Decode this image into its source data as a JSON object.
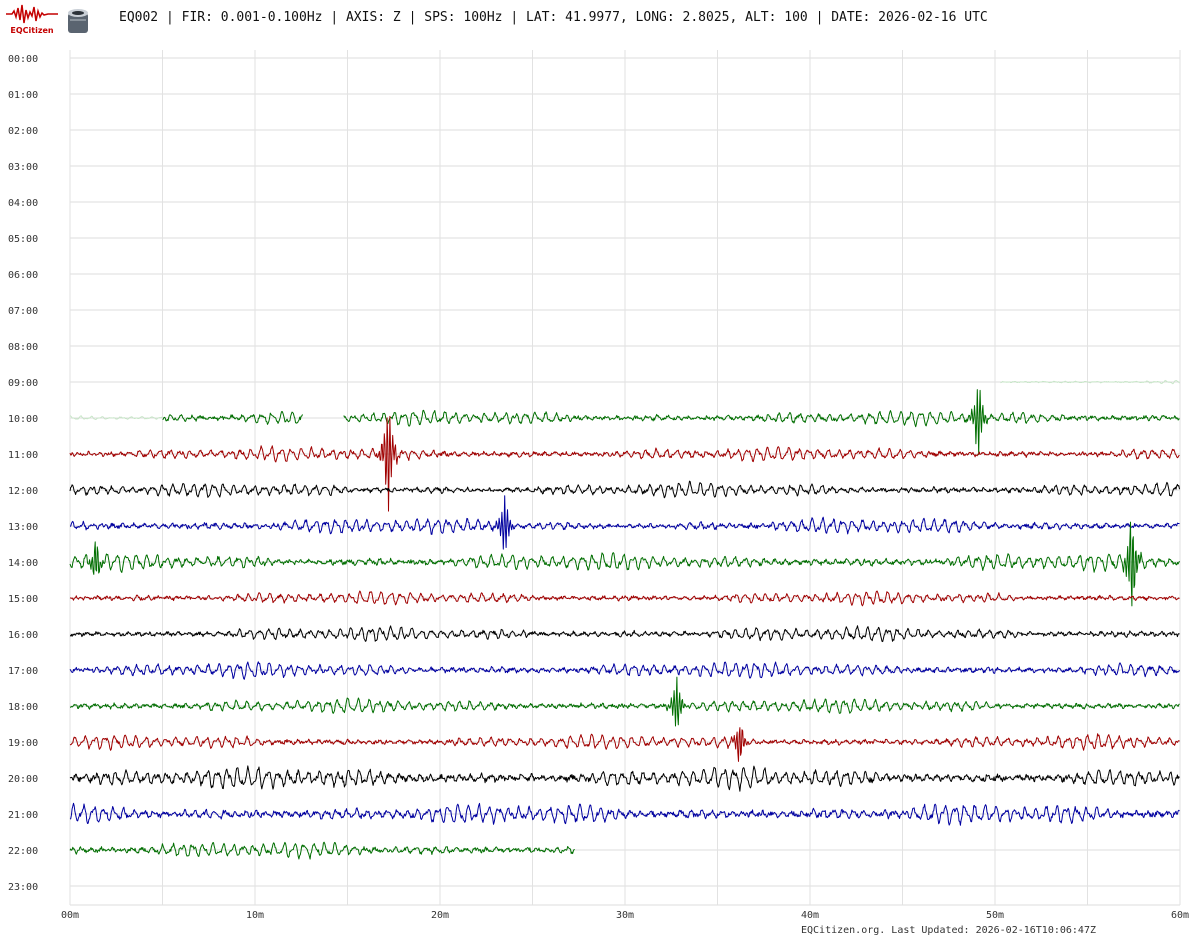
{
  "logo": {
    "text": "EQCitizen",
    "icon": "seismograph-wave-icon"
  },
  "sensor_icon": "sensor-device-icon",
  "header": {
    "title": "EQ002 | FIR: 0.001-0.100Hz | AXIS: Z | SPS: 100Hz | LAT: 41.9977, LONG: 2.8025, ALT: 100 | DATE: 2026-02-16 UTC"
  },
  "footer": {
    "text": "EQCitizen.org. Last Updated: 2026-02-16T10:06:47Z"
  },
  "chart_data": {
    "type": "line",
    "title": "",
    "xlabel": "",
    "ylabel": "",
    "x_ticks": [
      "00m",
      "10m",
      "20m",
      "30m",
      "40m",
      "50m",
      "60m"
    ],
    "x_range_minutes": [
      0,
      60
    ],
    "y_ticks": [
      "00:00",
      "01:00",
      "02:00",
      "03:00",
      "04:00",
      "05:00",
      "06:00",
      "07:00",
      "08:00",
      "09:00",
      "10:00",
      "11:00",
      "12:00",
      "13:00",
      "14:00",
      "15:00",
      "16:00",
      "17:00",
      "18:00",
      "19:00",
      "20:00",
      "21:00",
      "22:00",
      "23:00"
    ],
    "grid": true,
    "colors": {
      "black": "#000000",
      "red": "#a00000",
      "blue": "#0000a0",
      "green": "#006e00",
      "light_green": "#c6e6c6"
    },
    "traces": [
      {
        "hour": "09:00",
        "color": "light_green",
        "start_min": 50.3,
        "end_min": 60,
        "amp": 0.3
      },
      {
        "hour": "10:00",
        "color": "light_green",
        "start_min": 0,
        "end_min": 5,
        "amp": 0.3
      },
      {
        "hour": "10:00",
        "color": "green",
        "start_min": 5,
        "end_min": 12.6,
        "amp": 1.0
      },
      {
        "hour": "10:00",
        "color": "green",
        "start_min": 14.8,
        "end_min": 60,
        "amp": 1.0,
        "spikes": [
          {
            "min": 49.1,
            "amp": 7.0
          }
        ]
      },
      {
        "hour": "11:00",
        "color": "red",
        "start_min": 0,
        "end_min": 60,
        "amp": 1.0,
        "spikes": [
          {
            "min": 17.2,
            "amp": 10.0
          }
        ]
      },
      {
        "hour": "12:00",
        "color": "black",
        "start_min": 0,
        "end_min": 60,
        "amp": 1.0
      },
      {
        "hour": "13:00",
        "color": "blue",
        "start_min": 0,
        "end_min": 60,
        "amp": 1.1,
        "spikes": [
          {
            "min": 23.5,
            "amp": 5.5
          }
        ]
      },
      {
        "hour": "14:00",
        "color": "green",
        "start_min": 0,
        "end_min": 60,
        "amp": 1.2,
        "spikes": [
          {
            "min": 1.4,
            "amp": 4.0
          },
          {
            "min": 57.4,
            "amp": 9.0
          }
        ]
      },
      {
        "hour": "15:00",
        "color": "red",
        "start_min": 0,
        "end_min": 60,
        "amp": 0.9
      },
      {
        "hour": "16:00",
        "color": "black",
        "start_min": 0,
        "end_min": 60,
        "amp": 1.0
      },
      {
        "hour": "17:00",
        "color": "blue",
        "start_min": 0,
        "end_min": 60,
        "amp": 1.1
      },
      {
        "hour": "18:00",
        "color": "green",
        "start_min": 0,
        "end_min": 60,
        "amp": 1.0,
        "spikes": [
          {
            "min": 32.8,
            "amp": 5.0
          }
        ]
      },
      {
        "hour": "19:00",
        "color": "red",
        "start_min": 0,
        "end_min": 60,
        "amp": 1.0,
        "spikes": [
          {
            "min": 36.2,
            "amp": 4.0
          }
        ]
      },
      {
        "hour": "20:00",
        "color": "black",
        "start_min": 0,
        "end_min": 60,
        "amp": 1.5
      },
      {
        "hour": "21:00",
        "color": "blue",
        "start_min": 0,
        "end_min": 60,
        "amp": 1.4
      },
      {
        "hour": "22:00",
        "color": "green",
        "start_min": 0,
        "end_min": 27.3,
        "amp": 1.1
      }
    ]
  }
}
